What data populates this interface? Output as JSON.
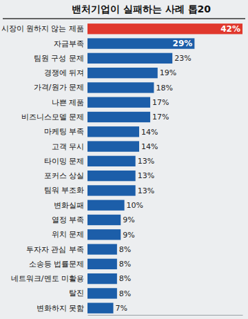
{
  "chart_data": {
    "type": "bar",
    "orientation": "horizontal",
    "title": "밴처기업이 실패하는 사례 톱20",
    "categories": [
      "시장이 원하지 않는 제품",
      "자금부족",
      "팀원 구성 문제",
      "경쟁에 뒤져",
      "가격/원가 문제",
      "나쁜 제품",
      "비즈니스모델 문제",
      "마케팅 부족",
      "고객 무시",
      "타이밍 문제",
      "포커스 상실",
      "팀워 부조화",
      "변화실패",
      "열정 부족",
      "위치 문제",
      "투자자 관심 부족",
      "소송등 법률문제",
      "네트워크/멘토 미활용",
      "탈진",
      "변화하지 못함"
    ],
    "values": [
      42,
      29,
      23,
      19,
      18,
      17,
      17,
      14,
      14,
      13,
      13,
      13,
      10,
      9,
      9,
      8,
      8,
      8,
      8,
      7
    ],
    "value_labels": [
      "42%",
      "29%",
      "23%",
      "19%",
      "18%",
      "17%",
      "17%",
      "14%",
      "14%",
      "13%",
      "13%",
      "13%",
      "10%",
      "9%",
      "9%",
      "8%",
      "8%",
      "8%",
      "8%",
      "7%"
    ],
    "colors": [
      "#e0382d",
      "#1c5ea9",
      "#1c5ea9",
      "#1c5ea9",
      "#1c5ea9",
      "#1c5ea9",
      "#1c5ea9",
      "#1c5ea9",
      "#1c5ea9",
      "#1c5ea9",
      "#1c5ea9",
      "#1c5ea9",
      "#1c5ea9",
      "#1c5ea9",
      "#1c5ea9",
      "#1c5ea9",
      "#1c5ea9",
      "#1c5ea9",
      "#1c5ea9",
      "#1c5ea9"
    ],
    "xlim": [
      0,
      42
    ],
    "data_labels": true,
    "tick_labels": "y",
    "grid": false
  }
}
